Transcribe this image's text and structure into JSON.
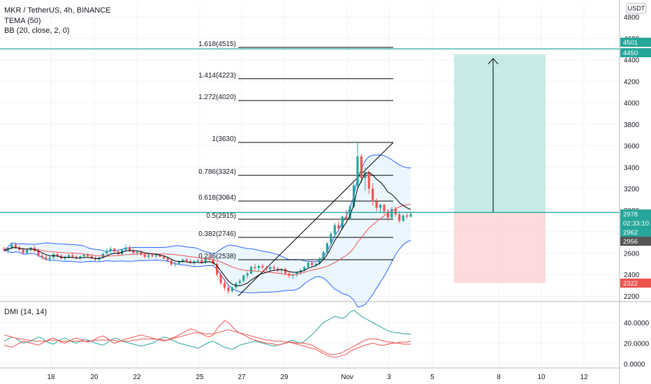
{
  "header": {
    "symbol_title": "MKR / TetherUS, 4h, BINANCE",
    "indicator_tema": "TEMA (50)",
    "indicator_bb": "BB (20, close, 2, 0)",
    "indicator_dmi": "DMI (14, 14)",
    "currency": "USDT"
  },
  "colors": {
    "up": "#26a69a",
    "down": "#ef5350",
    "bb_band": "#2962ff",
    "bb_fill": "#e3f2fd",
    "tema": "#000000",
    "basis": "#ef5350",
    "target_fill": "#bde8e2",
    "stop_fill": "#fbd7d7",
    "hline": "#26a69a",
    "dmi_plus": "#26a69a",
    "dmi_minus": "#ef5350",
    "adx": "#ef5350"
  },
  "chart_data": {
    "type": "candlestick",
    "price_axis": {
      "ticks": [
        "4800",
        "4600",
        "4400",
        "4200",
        "4000",
        "3800",
        "3600",
        "3400",
        "3200",
        "3000",
        "2800",
        "2600",
        "2400",
        "2200"
      ],
      "ylim": [
        2200,
        4800
      ]
    },
    "x_axis_ticks": [
      "18",
      "20",
      "22",
      "25",
      "27",
      "29",
      "Nov",
      "3",
      "5",
      "8",
      "10",
      "12"
    ],
    "price_labels": [
      {
        "text": "4501",
        "value": 4501,
        "color": "#26a69a"
      },
      {
        "text": "4450",
        "value": 4450,
        "color": "#26a69a"
      },
      {
        "text": "2978",
        "value": 2978,
        "color": "#26a69a"
      },
      {
        "text": "02:33:10",
        "value": 2978,
        "color": "#26a69a"
      },
      {
        "text": "2962",
        "value": 2962,
        "color": "#26a69a"
      },
      {
        "text": "2956",
        "value": 2956,
        "color": "#555555"
      },
      {
        "text": "2322",
        "value": 2322,
        "color": "#ef5350"
      }
    ],
    "fib_levels": [
      {
        "label": "1.618(4515)",
        "value": 4515
      },
      {
        "label": "1.414(4223)",
        "value": 4223
      },
      {
        "label": "1.272(4020)",
        "value": 4020
      },
      {
        "label": "1(3630)",
        "value": 3630
      },
      {
        "label": "0.786(3324)",
        "value": 3324
      },
      {
        "label": "0.618(3084)",
        "value": 3084
      },
      {
        "label": "0.5(2915)",
        "value": 2915
      },
      {
        "label": "0.382(2746)",
        "value": 2746
      },
      {
        "label": "0.236(2538)",
        "value": 2538
      }
    ],
    "horizontal_lines": [
      4501,
      2978
    ],
    "long_position": {
      "entry": 2978,
      "target": 4450,
      "stop": 2322
    },
    "candles": [
      [
        2640,
        2660,
        2610,
        2625
      ],
      [
        2625,
        2655,
        2600,
        2645
      ],
      [
        2645,
        2690,
        2630,
        2680
      ],
      [
        2680,
        2700,
        2640,
        2650
      ],
      [
        2650,
        2670,
        2620,
        2630
      ],
      [
        2630,
        2650,
        2590,
        2600
      ],
      [
        2600,
        2640,
        2585,
        2630
      ],
      [
        2630,
        2660,
        2615,
        2650
      ],
      [
        2650,
        2665,
        2610,
        2620
      ],
      [
        2620,
        2640,
        2560,
        2575
      ],
      [
        2575,
        2600,
        2540,
        2560
      ],
      [
        2560,
        2585,
        2530,
        2545
      ],
      [
        2545,
        2570,
        2520,
        2560
      ],
      [
        2560,
        2600,
        2545,
        2590
      ],
      [
        2590,
        2610,
        2560,
        2575
      ],
      [
        2575,
        2590,
        2540,
        2550
      ],
      [
        2550,
        2575,
        2530,
        2565
      ],
      [
        2565,
        2590,
        2550,
        2580
      ],
      [
        2580,
        2600,
        2555,
        2565
      ],
      [
        2565,
        2580,
        2540,
        2555
      ],
      [
        2555,
        2575,
        2535,
        2570
      ],
      [
        2570,
        2595,
        2555,
        2585
      ],
      [
        2585,
        2600,
        2560,
        2570
      ],
      [
        2570,
        2590,
        2545,
        2555
      ],
      [
        2555,
        2570,
        2525,
        2540
      ],
      [
        2540,
        2565,
        2525,
        2560
      ],
      [
        2560,
        2600,
        2550,
        2595
      ],
      [
        2595,
        2640,
        2580,
        2620
      ],
      [
        2620,
        2660,
        2600,
        2640
      ],
      [
        2640,
        2650,
        2600,
        2615
      ],
      [
        2615,
        2630,
        2580,
        2590
      ],
      [
        2590,
        2640,
        2575,
        2630
      ],
      [
        2630,
        2680,
        2620,
        2650
      ],
      [
        2650,
        2670,
        2610,
        2625
      ],
      [
        2625,
        2640,
        2590,
        2600
      ],
      [
        2600,
        2620,
        2580,
        2610
      ],
      [
        2610,
        2620,
        2575,
        2585
      ],
      [
        2585,
        2600,
        2550,
        2565
      ],
      [
        2565,
        2590,
        2545,
        2580
      ],
      [
        2580,
        2600,
        2560,
        2570
      ],
      [
        2570,
        2590,
        2550,
        2580
      ],
      [
        2580,
        2595,
        2560,
        2565
      ],
      [
        2565,
        2580,
        2540,
        2550
      ],
      [
        2550,
        2565,
        2520,
        2530
      ],
      [
        2530,
        2545,
        2480,
        2495
      ],
      [
        2495,
        2520,
        2470,
        2500
      ],
      [
        2500,
        2530,
        2490,
        2520
      ],
      [
        2520,
        2550,
        2505,
        2540
      ],
      [
        2540,
        2555,
        2515,
        2525
      ],
      [
        2525,
        2540,
        2500,
        2510
      ],
      [
        2510,
        2535,
        2490,
        2525
      ],
      [
        2525,
        2545,
        2510,
        2535
      ],
      [
        2535,
        2550,
        2500,
        2510
      ],
      [
        2510,
        2560,
        2500,
        2550
      ],
      [
        2550,
        2580,
        2530,
        2540
      ],
      [
        2540,
        2550,
        2490,
        2500
      ],
      [
        2500,
        2515,
        2380,
        2400
      ],
      [
        2400,
        2420,
        2300,
        2320
      ],
      [
        2320,
        2360,
        2250,
        2280
      ],
      [
        2280,
        2300,
        2220,
        2245
      ],
      [
        2245,
        2290,
        2230,
        2280
      ],
      [
        2280,
        2330,
        2265,
        2320
      ],
      [
        2320,
        2360,
        2300,
        2340
      ],
      [
        2340,
        2400,
        2330,
        2390
      ],
      [
        2390,
        2430,
        2360,
        2410
      ],
      [
        2410,
        2480,
        2400,
        2470
      ],
      [
        2470,
        2500,
        2440,
        2460
      ],
      [
        2460,
        2490,
        2430,
        2480
      ],
      [
        2480,
        2500,
        2450,
        2465
      ],
      [
        2465,
        2480,
        2430,
        2450
      ],
      [
        2450,
        2475,
        2420,
        2470
      ],
      [
        2470,
        2490,
        2440,
        2455
      ],
      [
        2455,
        2470,
        2420,
        2440
      ],
      [
        2440,
        2460,
        2410,
        2450
      ],
      [
        2450,
        2465,
        2400,
        2410
      ],
      [
        2410,
        2430,
        2370,
        2390
      ],
      [
        2390,
        2410,
        2360,
        2400
      ],
      [
        2400,
        2430,
        2380,
        2420
      ],
      [
        2420,
        2450,
        2400,
        2440
      ],
      [
        2440,
        2480,
        2430,
        2470
      ],
      [
        2470,
        2520,
        2460,
        2510
      ],
      [
        2510,
        2530,
        2470,
        2490
      ],
      [
        2490,
        2510,
        2470,
        2500
      ],
      [
        2500,
        2560,
        2490,
        2550
      ],
      [
        2550,
        2620,
        2540,
        2610
      ],
      [
        2610,
        2700,
        2600,
        2690
      ],
      [
        2690,
        2800,
        2680,
        2780
      ],
      [
        2780,
        2880,
        2760,
        2860
      ],
      [
        2860,
        2900,
        2800,
        2830
      ],
      [
        2830,
        2950,
        2820,
        2940
      ],
      [
        2940,
        3000,
        2900,
        2920
      ],
      [
        2920,
        3050,
        2910,
        3030
      ],
      [
        3030,
        3250,
        3020,
        3230
      ],
      [
        3230,
        3630,
        3200,
        3500
      ],
      [
        3500,
        3520,
        3250,
        3300
      ],
      [
        3300,
        3400,
        3180,
        3350
      ],
      [
        3350,
        3370,
        3150,
        3200
      ],
      [
        3200,
        3250,
        3040,
        3080
      ],
      [
        3080,
        3110,
        2990,
        3020
      ],
      [
        3020,
        3060,
        2980,
        3050
      ],
      [
        3050,
        3060,
        2960,
        2990
      ],
      [
        2990,
        3010,
        2900,
        2930
      ],
      [
        2930,
        3030,
        2920,
        3010
      ],
      [
        3010,
        3030,
        2940,
        2960
      ],
      [
        2960,
        2990,
        2880,
        2900
      ],
      [
        2900,
        2960,
        2890,
        2950
      ],
      [
        2950,
        2970,
        2920,
        2940
      ],
      [
        2940,
        2990,
        2930,
        2962
      ]
    ],
    "dmi": {
      "y_ticks": [
        "40.0000",
        "20.0000",
        "0.0000"
      ],
      "ylim": [
        0,
        50
      ],
      "series": [
        {
          "name": "+DI",
          "color": "#26a69a",
          "values": [
            22,
            24,
            26,
            25,
            22,
            20,
            21,
            22,
            24,
            26,
            25,
            22,
            20,
            19,
            22,
            24,
            25,
            23,
            21,
            20,
            22,
            24,
            23,
            22,
            20,
            19,
            18,
            20,
            23,
            25,
            24,
            22,
            21,
            20,
            19,
            18,
            17,
            18,
            19,
            20,
            22,
            24,
            26,
            25,
            23,
            22,
            20,
            19,
            18,
            17,
            16,
            15,
            17,
            19,
            21,
            22,
            20,
            18,
            16,
            15,
            14,
            16,
            18,
            19,
            20,
            21,
            22,
            21,
            20,
            19,
            18,
            17,
            18,
            19,
            20,
            22,
            23,
            21,
            20,
            22,
            25,
            28,
            32,
            36,
            40,
            42,
            44,
            46,
            45,
            44,
            46,
            50,
            52,
            49,
            46,
            44,
            42,
            40,
            38,
            36,
            34,
            32,
            31,
            30,
            30,
            29,
            29,
            29
          ]
        },
        {
          "name": "-DI",
          "color": "#ef5350",
          "values": [
            18,
            17,
            16,
            18,
            20,
            22,
            21,
            20,
            19,
            18,
            20,
            22,
            24,
            25,
            23,
            21,
            20,
            22,
            24,
            25,
            24,
            22,
            21,
            22,
            24,
            26,
            27,
            25,
            22,
            20,
            21,
            23,
            24,
            25,
            26,
            27,
            28,
            27,
            26,
            25,
            24,
            23,
            22,
            23,
            25,
            26,
            28,
            30,
            32,
            34,
            33,
            31,
            29,
            27,
            26,
            28,
            34,
            38,
            42,
            40,
            36,
            32,
            30,
            28,
            26,
            24,
            23,
            22,
            21,
            20,
            20,
            19,
            18,
            19,
            20,
            21,
            20,
            19,
            18,
            17,
            16,
            15,
            14,
            12,
            10,
            8,
            7,
            6,
            7,
            8,
            9,
            12,
            14,
            15,
            17,
            18,
            19,
            20,
            19,
            18,
            18,
            19,
            20,
            20,
            21,
            21,
            21,
            22
          ]
        },
        {
          "name": "ADX",
          "color": "#ef5350",
          "values": [
            28,
            27,
            26,
            25,
            24,
            24,
            23,
            23,
            22,
            22,
            22,
            22,
            23,
            23,
            23,
            22,
            22,
            22,
            22,
            22,
            22,
            22,
            22,
            22,
            23,
            23,
            23,
            23,
            23,
            23,
            22,
            22,
            22,
            22,
            23,
            23,
            24,
            24,
            24,
            24,
            24,
            24,
            23,
            23,
            24,
            25,
            26,
            27,
            28,
            29,
            30,
            30,
            30,
            29,
            29,
            29,
            30,
            31,
            32,
            33,
            32,
            31,
            30,
            29,
            28,
            27,
            26,
            25,
            24,
            23,
            23,
            22,
            22,
            22,
            21,
            21,
            21,
            20,
            20,
            20,
            19,
            18,
            16,
            14,
            12,
            10,
            9,
            9,
            10,
            11,
            13,
            15,
            17,
            19,
            21,
            23,
            24,
            24,
            24,
            23,
            22,
            21,
            21,
            20,
            20,
            19,
            19,
            19
          ]
        }
      ]
    }
  }
}
